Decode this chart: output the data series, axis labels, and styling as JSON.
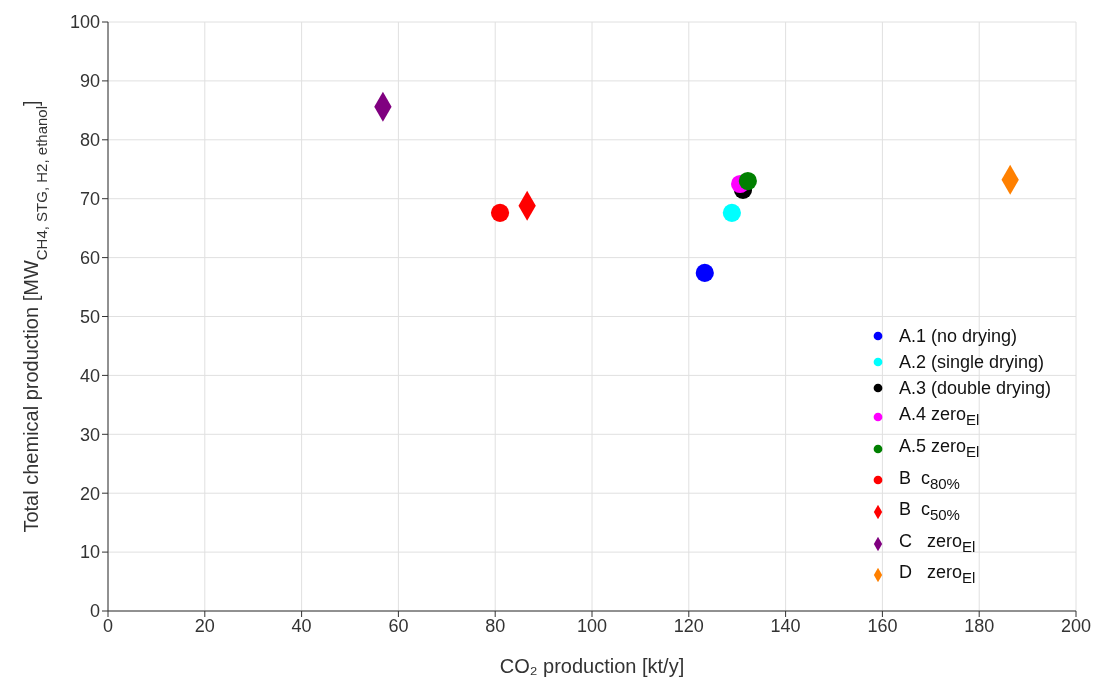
{
  "chart_data": {
    "type": "scatter",
    "xlabel": "CO₂ production [kt/y]",
    "ylabel": "Total chemical production [MW$_{CH4, STG, H2, ethanol}$]",
    "xlim": [
      0,
      200
    ],
    "xticks": [
      0,
      20,
      40,
      60,
      80,
      100,
      120,
      140,
      160,
      180,
      200
    ],
    "ylim": [
      0,
      100
    ],
    "yticks": [
      0,
      10,
      20,
      30,
      40,
      50,
      60,
      70,
      80,
      90,
      100
    ],
    "grid": true,
    "legend": "bottom right",
    "series": [
      {
        "name": "A.1 (no drying)",
        "color": "#0000ff",
        "marker": "circle",
        "x": [
          123.3
        ],
        "values": [
          57.4
        ]
      },
      {
        "name": "A.2 (single drying)",
        "color": "#00ffff",
        "marker": "circle",
        "x": [
          128.9
        ],
        "values": [
          67.6
        ]
      },
      {
        "name": "A.3 (double drying)",
        "color": "#000000",
        "marker": "circle",
        "x": [
          131.2
        ],
        "values": [
          71.5
        ]
      },
      {
        "name": "A.4 zero$_{El}$",
        "color": "#ff00ff",
        "marker": "circle",
        "x": [
          130.6
        ],
        "values": [
          72.5
        ]
      },
      {
        "name": "A.5 zero$_{El}$",
        "color": "#008000",
        "marker": "circle",
        "x": [
          132.2
        ],
        "values": [
          73.0
        ]
      },
      {
        "name": "B  c$_{80%}$",
        "color": "#ff0000",
        "marker": "circle",
        "x": [
          81.0
        ],
        "values": [
          67.6
        ]
      },
      {
        "name": "B  c$_{50%}$",
        "color": "#ff0000",
        "marker": "diamond",
        "x": [
          86.6
        ],
        "values": [
          68.8
        ]
      },
      {
        "name": "C   zero$_{El}$",
        "color": "#800080",
        "marker": "diamond",
        "x": [
          56.8
        ],
        "values": [
          85.6
        ]
      },
      {
        "name": "D   zero$_{El}$",
        "color": "#ff8000",
        "marker": "diamond",
        "x": [
          186.4
        ],
        "values": [
          73.2
        ]
      }
    ]
  }
}
